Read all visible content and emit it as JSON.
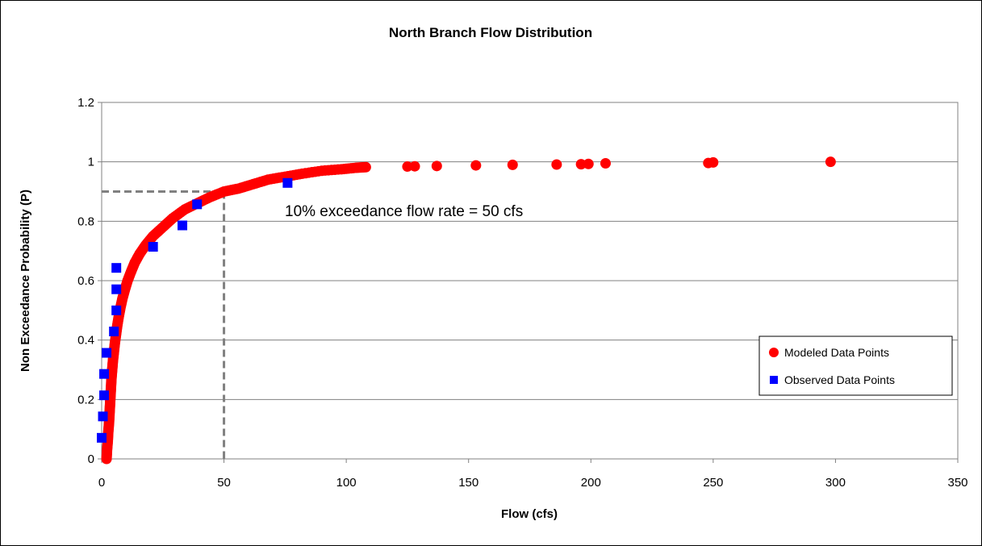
{
  "chart_data": {
    "type": "scatter",
    "title": "North Branch Flow Distribution",
    "xlabel": "Flow (cfs)",
    "ylabel": "Non Exceedance Probability (P)",
    "xlim": [
      0,
      350
    ],
    "ylim": [
      0,
      1.2
    ],
    "x_ticks": [
      "0",
      "50",
      "100",
      "150",
      "200",
      "250",
      "300",
      "350"
    ],
    "y_ticks": [
      "0",
      "0.2",
      "0.4",
      "0.6",
      "0.8",
      "1",
      "1.2"
    ],
    "grid": "horizontal",
    "legend_position": "right",
    "annotation": {
      "text": "10% exceedance flow rate = 50 cfs",
      "x": 50,
      "y": 0.9
    },
    "series": [
      {
        "name": "Modeled Data Points",
        "color": "#ff0000",
        "marker": "circle",
        "points": [
          [
            2,
            0.0
          ],
          [
            2.2,
            0.03
          ],
          [
            2.5,
            0.06
          ],
          [
            2.7,
            0.09
          ],
          [
            3,
            0.12
          ],
          [
            3.2,
            0.15
          ],
          [
            3.4,
            0.18
          ],
          [
            3.6,
            0.21
          ],
          [
            3.8,
            0.24
          ],
          [
            4,
            0.27
          ],
          [
            4.3,
            0.3
          ],
          [
            4.6,
            0.33
          ],
          [
            5,
            0.36
          ],
          [
            5.4,
            0.39
          ],
          [
            5.9,
            0.42
          ],
          [
            6.4,
            0.45
          ],
          [
            7,
            0.48
          ],
          [
            7.7,
            0.51
          ],
          [
            8.5,
            0.54
          ],
          [
            9.5,
            0.57
          ],
          [
            10.6,
            0.6
          ],
          [
            12,
            0.63
          ],
          [
            13.5,
            0.66
          ],
          [
            15.5,
            0.69
          ],
          [
            18,
            0.72
          ],
          [
            21,
            0.75
          ],
          [
            25,
            0.78
          ],
          [
            29,
            0.81
          ],
          [
            34,
            0.84
          ],
          [
            39,
            0.86
          ],
          [
            44,
            0.88
          ],
          [
            50,
            0.9
          ],
          [
            56,
            0.91
          ],
          [
            62,
            0.925
          ],
          [
            68,
            0.94
          ],
          [
            75,
            0.95
          ],
          [
            82,
            0.96
          ],
          [
            90,
            0.97
          ],
          [
            98,
            0.975
          ],
          [
            104,
            0.98
          ],
          [
            108,
            0.982
          ],
          [
            125,
            0.984
          ],
          [
            128,
            0.985
          ],
          [
            137,
            0.986
          ],
          [
            153,
            0.988
          ],
          [
            168,
            0.99
          ],
          [
            186,
            0.991
          ],
          [
            196,
            0.992
          ],
          [
            199,
            0.993
          ],
          [
            206,
            0.995
          ],
          [
            248,
            0.996
          ],
          [
            250,
            0.998
          ],
          [
            298,
            1.0
          ]
        ]
      },
      {
        "name": "Observed Data Points",
        "color": "#0000ff",
        "marker": "square",
        "points": [
          [
            0,
            0.071
          ],
          [
            0.5,
            0.143
          ],
          [
            1,
            0.214
          ],
          [
            1,
            0.286
          ],
          [
            2,
            0.357
          ],
          [
            5,
            0.429
          ],
          [
            6,
            0.5
          ],
          [
            6,
            0.571
          ],
          [
            6,
            0.643
          ],
          [
            21,
            0.714
          ],
          [
            33,
            0.786
          ],
          [
            39,
            0.857
          ],
          [
            76,
            0.929
          ]
        ]
      }
    ]
  }
}
